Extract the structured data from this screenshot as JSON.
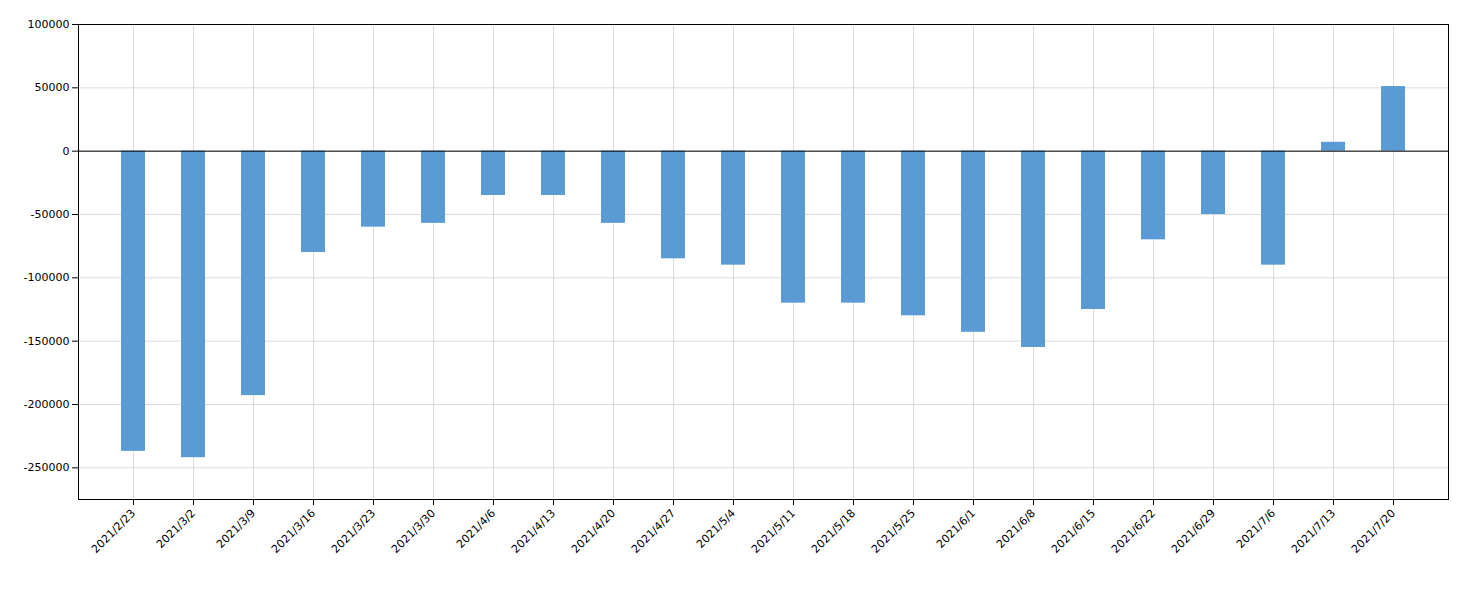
{
  "chart_data": {
    "type": "bar",
    "categories": [
      "2021/2/23",
      "2021/3/2",
      "2021/3/9",
      "2021/3/16",
      "2021/3/23",
      "2021/3/30",
      "2021/4/6",
      "2021/4/13",
      "2021/4/20",
      "2021/4/27",
      "2021/5/4",
      "2021/5/11",
      "2021/5/18",
      "2021/5/25",
      "2021/6/1",
      "2021/6/8",
      "2021/6/15",
      "2021/6/22",
      "2021/6/29",
      "2021/7/6",
      "2021/7/13",
      "2021/7/20"
    ],
    "values": [
      -237000,
      -242000,
      -193000,
      -80000,
      -60000,
      -57000,
      -35000,
      -35000,
      -57000,
      -85000,
      -90000,
      -120000,
      -120000,
      -130000,
      -143000,
      -155000,
      -125000,
      -70000,
      -50000,
      -90000,
      7000,
      51000
    ],
    "color": "#5b9bd5",
    "ylim": [
      -275000,
      100000
    ],
    "yticks": [
      -250000,
      -200000,
      -150000,
      -100000,
      -50000,
      0,
      50000,
      100000
    ],
    "grid": true
  }
}
